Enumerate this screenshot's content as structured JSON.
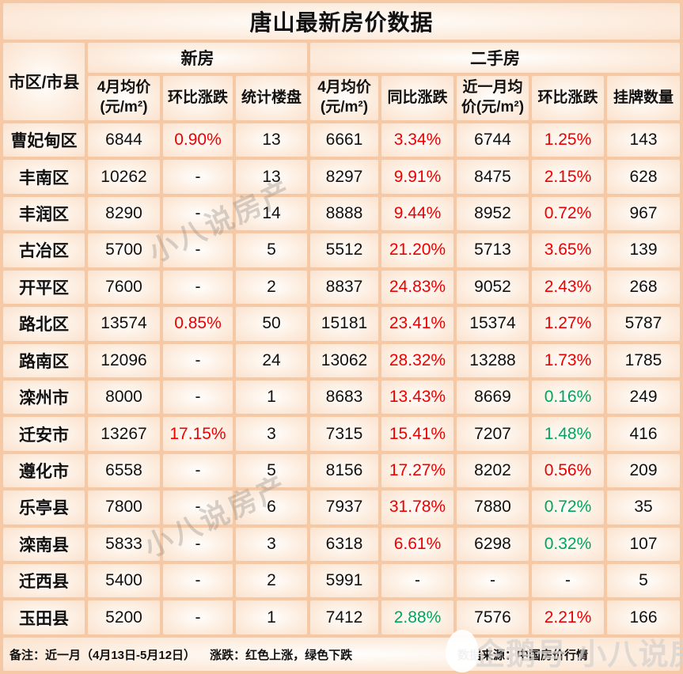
{
  "chart_data": {
    "type": "table",
    "title": "唐山最新房价数据",
    "corner_header": "市区/市县",
    "groups": [
      {
        "label": "新房",
        "span": 3
      },
      {
        "label": "二手房",
        "span": 5
      }
    ],
    "columns": [
      "4月均价(元/m²)",
      "环比涨跌",
      "统计楼盘",
      "4月均价(元/m²)",
      "同比涨跌",
      "近一月均价(元/m²)",
      "环比涨跌",
      "挂牌数量"
    ],
    "rows": [
      {
        "region": "曹妃甸区",
        "cells": [
          [
            "6844",
            ""
          ],
          [
            "0.90%",
            "red"
          ],
          [
            "13",
            ""
          ],
          [
            "6661",
            ""
          ],
          [
            "3.34%",
            "red"
          ],
          [
            "6744",
            ""
          ],
          [
            "1.25%",
            "red"
          ],
          [
            "143",
            ""
          ]
        ]
      },
      {
        "region": "丰南区",
        "cells": [
          [
            "10262",
            ""
          ],
          [
            "-",
            ""
          ],
          [
            "13",
            ""
          ],
          [
            "8297",
            ""
          ],
          [
            "9.91%",
            "red"
          ],
          [
            "8475",
            ""
          ],
          [
            "2.15%",
            "red"
          ],
          [
            "628",
            ""
          ]
        ]
      },
      {
        "region": "丰润区",
        "cells": [
          [
            "8290",
            ""
          ],
          [
            "-",
            ""
          ],
          [
            "14",
            ""
          ],
          [
            "8888",
            ""
          ],
          [
            "9.44%",
            "red"
          ],
          [
            "8952",
            ""
          ],
          [
            "0.72%",
            "red"
          ],
          [
            "967",
            ""
          ]
        ]
      },
      {
        "region": "古冶区",
        "cells": [
          [
            "5700",
            ""
          ],
          [
            "-",
            ""
          ],
          [
            "5",
            ""
          ],
          [
            "5512",
            ""
          ],
          [
            "21.20%",
            "red"
          ],
          [
            "5713",
            ""
          ],
          [
            "3.65%",
            "red"
          ],
          [
            "139",
            ""
          ]
        ]
      },
      {
        "region": "开平区",
        "cells": [
          [
            "7600",
            ""
          ],
          [
            "-",
            ""
          ],
          [
            "2",
            ""
          ],
          [
            "8837",
            ""
          ],
          [
            "24.83%",
            "red"
          ],
          [
            "9052",
            ""
          ],
          [
            "2.43%",
            "red"
          ],
          [
            "268",
            ""
          ]
        ]
      },
      {
        "region": "路北区",
        "cells": [
          [
            "13574",
            ""
          ],
          [
            "0.85%",
            "red"
          ],
          [
            "50",
            ""
          ],
          [
            "15181",
            ""
          ],
          [
            "23.41%",
            "red"
          ],
          [
            "15374",
            ""
          ],
          [
            "1.27%",
            "red"
          ],
          [
            "5787",
            ""
          ]
        ]
      },
      {
        "region": "路南区",
        "cells": [
          [
            "12096",
            ""
          ],
          [
            "-",
            ""
          ],
          [
            "24",
            ""
          ],
          [
            "13062",
            ""
          ],
          [
            "28.32%",
            "red"
          ],
          [
            "13288",
            ""
          ],
          [
            "1.73%",
            "red"
          ],
          [
            "1785",
            ""
          ]
        ]
      },
      {
        "region": "滦州市",
        "cells": [
          [
            "8000",
            ""
          ],
          [
            "-",
            ""
          ],
          [
            "1",
            ""
          ],
          [
            "8683",
            ""
          ],
          [
            "13.43%",
            "red"
          ],
          [
            "8669",
            ""
          ],
          [
            "0.16%",
            "green"
          ],
          [
            "249",
            ""
          ]
        ]
      },
      {
        "region": "迁安市",
        "cells": [
          [
            "13267",
            ""
          ],
          [
            "17.15%",
            "red"
          ],
          [
            "3",
            ""
          ],
          [
            "7315",
            ""
          ],
          [
            "15.41%",
            "red"
          ],
          [
            "7207",
            ""
          ],
          [
            "1.48%",
            "green"
          ],
          [
            "416",
            ""
          ]
        ]
      },
      {
        "region": "遵化市",
        "cells": [
          [
            "6558",
            ""
          ],
          [
            "-",
            ""
          ],
          [
            "5",
            ""
          ],
          [
            "8156",
            ""
          ],
          [
            "17.27%",
            "red"
          ],
          [
            "8202",
            ""
          ],
          [
            "0.56%",
            "red"
          ],
          [
            "209",
            ""
          ]
        ]
      },
      {
        "region": "乐亭县",
        "cells": [
          [
            "7800",
            ""
          ],
          [
            "-",
            ""
          ],
          [
            "6",
            ""
          ],
          [
            "7937",
            ""
          ],
          [
            "31.78%",
            "red"
          ],
          [
            "7880",
            ""
          ],
          [
            "0.72%",
            "green"
          ],
          [
            "35",
            ""
          ]
        ]
      },
      {
        "region": "滦南县",
        "cells": [
          [
            "5833",
            ""
          ],
          [
            "-",
            ""
          ],
          [
            "3",
            ""
          ],
          [
            "6318",
            ""
          ],
          [
            "6.61%",
            "red"
          ],
          [
            "6298",
            ""
          ],
          [
            "0.32%",
            "green"
          ],
          [
            "107",
            ""
          ]
        ]
      },
      {
        "region": "迁西县",
        "cells": [
          [
            "5400",
            ""
          ],
          [
            "-",
            ""
          ],
          [
            "2",
            ""
          ],
          [
            "5991",
            ""
          ],
          [
            "-",
            ""
          ],
          [
            "-",
            ""
          ],
          [
            "-",
            ""
          ],
          [
            "5",
            ""
          ]
        ]
      },
      {
        "region": "玉田县",
        "cells": [
          [
            "5200",
            ""
          ],
          [
            "-",
            ""
          ],
          [
            "1",
            ""
          ],
          [
            "7412",
            ""
          ],
          [
            "2.88%",
            "green"
          ],
          [
            "7576",
            ""
          ],
          [
            "2.21%",
            "red"
          ],
          [
            "166",
            ""
          ]
        ]
      }
    ],
    "legend": {
      "red_means": "红色上涨",
      "green_means": "绿色下跌"
    }
  },
  "footer": {
    "note": "备注：近一月（4月13日-5月12日）",
    "legend": "涨跌：红色上涨，绿色下跌",
    "source": "数据来源：中国房价行情"
  },
  "watermarks": {
    "diagonal": "小八说房产",
    "bottom": "企鹅号 小八说房产"
  },
  "colors": {
    "up_red": "#ee0000",
    "down_green": "#00a65c",
    "border_peach": "#f6c9a6"
  }
}
